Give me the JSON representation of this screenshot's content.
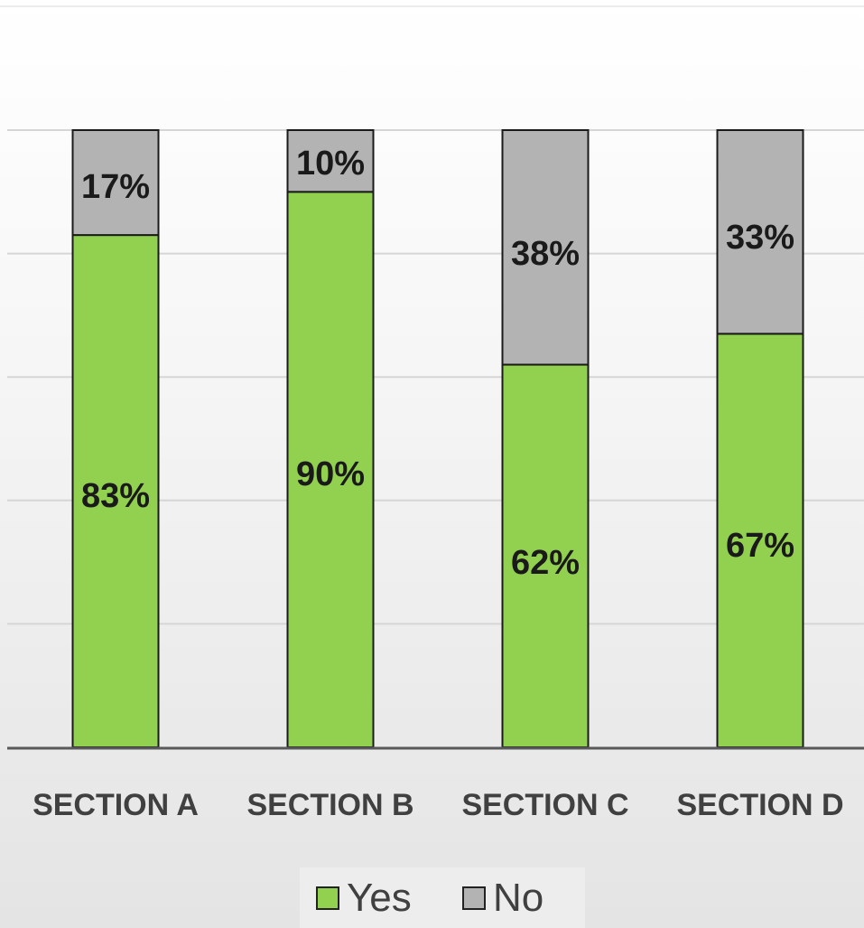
{
  "chart_data": {
    "type": "bar",
    "stacked": true,
    "percent": true,
    "categories": [
      "SECTION A",
      "SECTION B",
      "SECTION C",
      "SECTION D"
    ],
    "series": [
      {
        "name": "Yes",
        "color": "#92d050",
        "values": [
          83,
          90,
          62,
          67
        ],
        "labels": [
          "83%",
          "90%",
          "62%",
          "67%"
        ]
      },
      {
        "name": "No",
        "color": "#b3b3b3",
        "values": [
          17,
          10,
          38,
          33
        ],
        "labels": [
          "17%",
          "10%",
          "38%",
          "33%"
        ]
      }
    ],
    "ylim": [
      0,
      100
    ],
    "grid": true,
    "legend": "bottom",
    "title": "",
    "xlabel": "",
    "ylabel": ""
  }
}
